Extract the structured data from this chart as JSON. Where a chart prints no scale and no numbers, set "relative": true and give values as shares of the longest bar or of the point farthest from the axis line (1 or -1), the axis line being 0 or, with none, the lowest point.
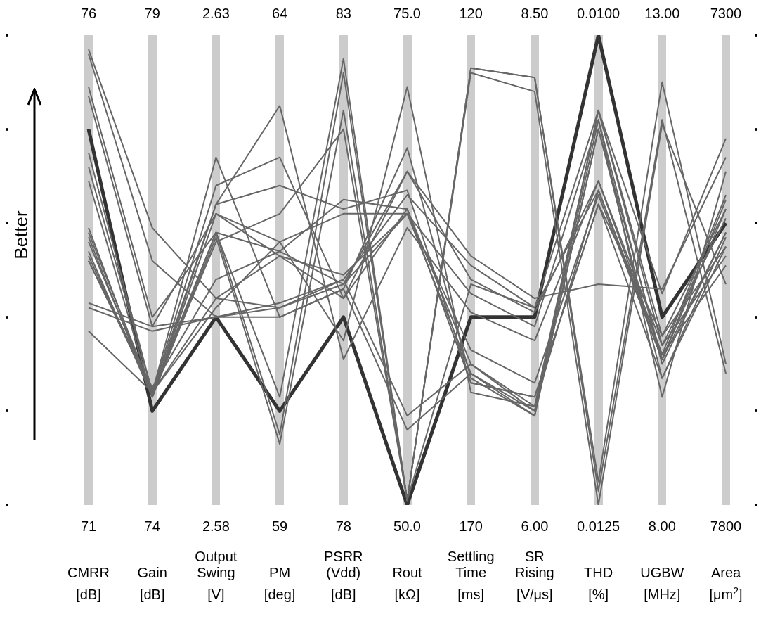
{
  "chart_data": {
    "type": "line",
    "ylabel": "Better",
    "categories": [
      "CMRR\n[dB]",
      "Gain\n[dB]",
      "Output\nSwing\n[V]",
      "PM\n[deg]",
      "PSRR\n(Vdd)\n[dB]",
      "Rout\n[kΩ]",
      "Settling\nTime\n[ms]",
      "SR\nRising\n[V/μs]",
      "THD\n[%]",
      "UGBW\n[MHz]",
      "Area\n[μm$^{2}$]"
    ],
    "relative": true,
    "grid": "x",
    "legend": false,
    "marker": "none",
    "line_style": "solid",
    "tick_labels": "x",
    "series": [
      {
        "color": "#666666",
        "values": [
          0.97,
          0.59,
          0.44,
          0.42,
          0.47,
          0.71,
          0.48,
          0.41,
          0.69,
          0.32,
          0.66
        ]
      },
      {
        "color": "#666666",
        "values": [
          0.96,
          0.52,
          0.4,
          0.43,
          0.48,
          0.66,
          0.51,
          0.42,
          0.67,
          0.31,
          0.63
        ]
      },
      {
        "color": "#666666",
        "values": [
          0.89,
          0.4,
          0.58,
          0.54,
          0.65,
          0.63,
          0.3,
          0.21,
          0.84,
          0.34,
          0.61
        ]
      },
      {
        "color": "#666666",
        "values": [
          0.87,
          0.38,
          0.62,
          0.56,
          0.62,
          0.62,
          0.28,
          0.2,
          0.82,
          0.3,
          0.58
        ]
      },
      {
        "color": "#666666",
        "values": [
          0.75,
          0.24,
          0.74,
          0.4,
          0.46,
          0.76,
          0.27,
          0.19,
          0.8,
          0.27,
          0.57
        ]
      },
      {
        "color": "#666666",
        "values": [
          0.72,
          0.24,
          0.68,
          0.74,
          0.44,
          0.71,
          0.53,
          0.44,
          0.47,
          0.46,
          0.74
        ]
      },
      {
        "color": "#666666",
        "values": [
          0.69,
          0.23,
          0.64,
          0.68,
          0.63,
          0.67,
          0.26,
          0.23,
          0.64,
          0.36,
          0.55
        ]
      },
      {
        "color": "#666666",
        "values": [
          0.59,
          0.23,
          0.58,
          0.23,
          0.95,
          0.01,
          0.93,
          0.91,
          0.05,
          0.9,
          0.3
        ]
      },
      {
        "color": "#666666",
        "values": [
          0.58,
          0.24,
          0.58,
          0.15,
          0.92,
          0.01,
          0.93,
          0.91,
          0.03,
          0.82,
          0.28
        ]
      },
      {
        "color": "#666666",
        "values": [
          0.57,
          0.23,
          0.57,
          0.13,
          0.84,
          0.01,
          0.92,
          0.88,
          0,
          0.81,
          0.47
        ]
      },
      {
        "color": "#666666",
        "values": [
          0.56,
          0.24,
          0.56,
          0.62,
          0.8,
          0.01,
          0.47,
          0.42,
          0.84,
          0.45,
          0.78
        ]
      },
      {
        "color": "#666666",
        "values": [
          0.54,
          0.23,
          0.62,
          0.53,
          0.49,
          0.62,
          0.33,
          0.26,
          0.66,
          0.31,
          0.65
        ]
      },
      {
        "color": "#666666",
        "values": [
          0.53,
          0.24,
          0.42,
          0.56,
          0.35,
          0.89,
          0.24,
          0.21,
          0.67,
          0.32,
          0.51
        ]
      },
      {
        "color": "#666666",
        "values": [
          0.52,
          0.25,
          0.48,
          0.54,
          0.47,
          0.62,
          0.45,
          0.38,
          0.82,
          0.23,
          0.71
        ]
      },
      {
        "color": "#666666",
        "values": [
          0.52,
          0.24,
          0.64,
          0.85,
          0.31,
          0.59,
          0.41,
          0.35,
          0.69,
          0.34,
          0.53
        ]
      },
      {
        "color": "#666666",
        "values": [
          0.43,
          0.38,
          0.4,
          0.42,
          0.48,
          0.19,
          0.3,
          0.2,
          0.84,
          0.36,
          0.63
        ]
      },
      {
        "color": "#666666",
        "values": [
          0.42,
          0.37,
          0.4,
          0.4,
          0.46,
          0.16,
          0.28,
          0.19,
          0.8,
          0.31,
          0.58
        ]
      },
      {
        "color": "#666666",
        "values": [
          0.37,
          0.24,
          0.44,
          0.53,
          0.44,
          0.63,
          0.26,
          0.23,
          0.64,
          0.27,
          0.55
        ]
      },
      {
        "color": "#333333",
        "values": [
          0.8,
          0.2,
          0.4,
          0.2,
          0.4,
          0,
          0.4,
          0.4,
          1,
          0.4,
          0.6
        ]
      }
    ],
    "annotations": [
      "76",
      "79",
      "2.63",
      "64",
      "83",
      "75.0",
      "120",
      "8.50",
      "0.0100",
      "13.00",
      "7300",
      "71",
      "74",
      "2.58",
      "59",
      "78",
      "50.0",
      "170",
      "6.00",
      "0.0125",
      "8.00",
      "7800"
    ]
  }
}
